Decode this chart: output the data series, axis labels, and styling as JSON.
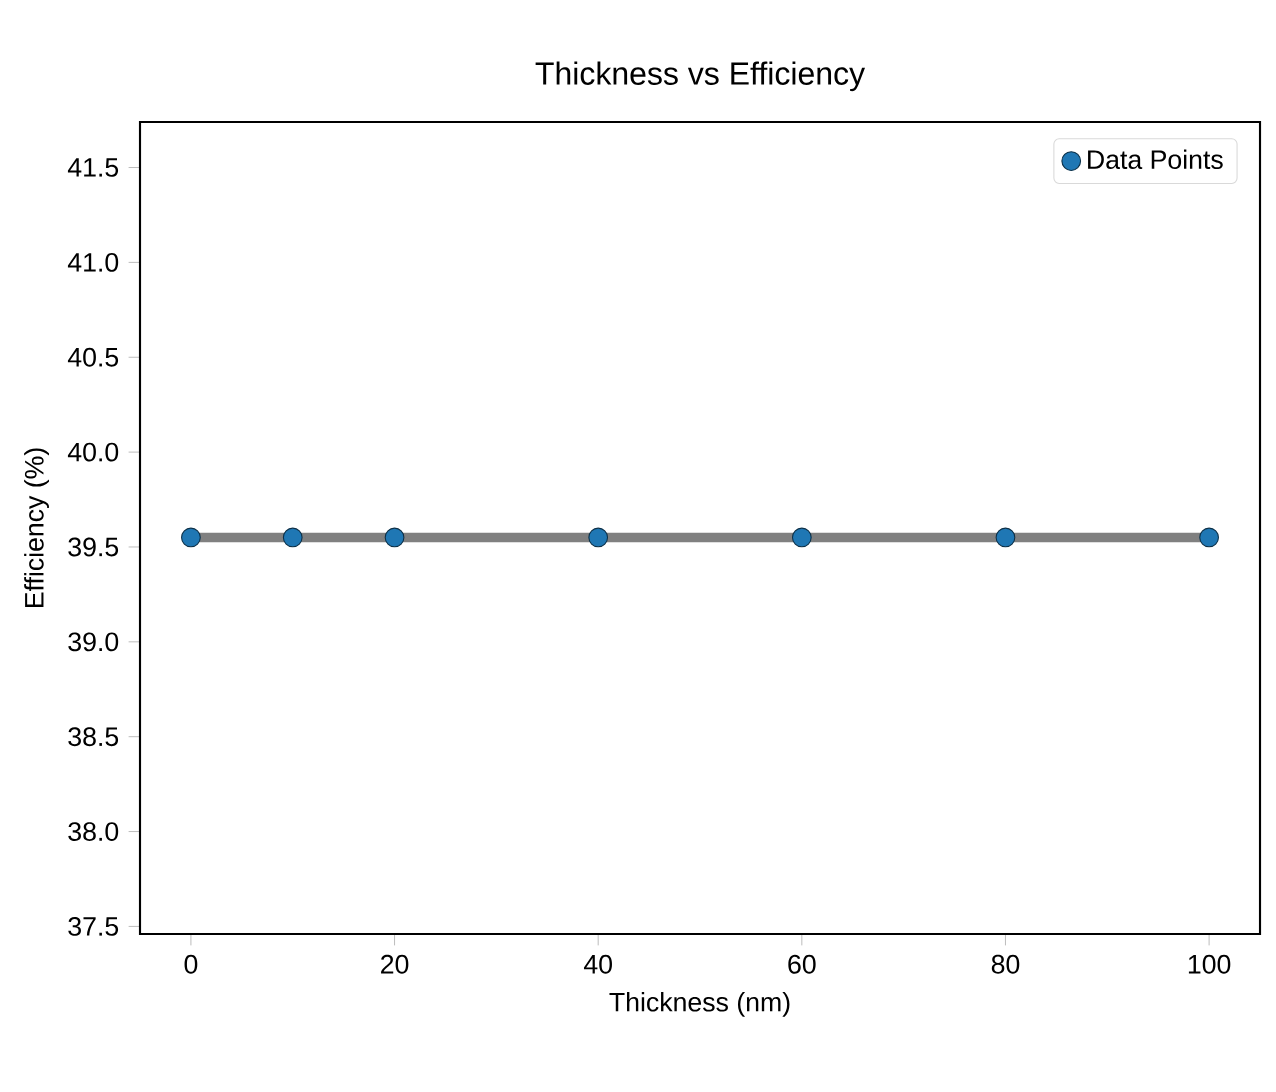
{
  "chart_data": {
    "type": "scatter",
    "title": "Thickness vs Efficiency",
    "xlabel": "Thickness (nm)",
    "ylabel": "Efficiency (%)",
    "xlim": [
      -5,
      105
    ],
    "ylim": [
      37.46,
      41.74
    ],
    "xticks": [
      0,
      20,
      40,
      60,
      80,
      100
    ],
    "yticks": [
      {
        "value": 37.5,
        "label": "37.5"
      },
      {
        "value": 38,
        "label": "38.0"
      },
      {
        "value": 38.5,
        "label": "38.5"
      },
      {
        "value": 39,
        "label": "39.0"
      },
      {
        "value": 39.5,
        "label": "39.5"
      },
      {
        "value": 40,
        "label": "40.0"
      },
      {
        "value": 40.5,
        "label": "40.5"
      },
      {
        "value": 41,
        "label": "41.0"
      },
      {
        "value": 41.5,
        "label": "41.5"
      }
    ],
    "legend": "top right",
    "grid": false,
    "marker": "circle",
    "series": [
      {
        "type": "line",
        "marker": "none",
        "color": "#808080",
        "x": [
          0,
          10,
          20,
          40,
          60,
          80,
          100
        ],
        "values": [
          39.55,
          39.55,
          39.55,
          39.55,
          39.55,
          39.55,
          39.55
        ]
      },
      {
        "name": "Data Points",
        "color": "#1f77b4",
        "x": [
          0,
          10,
          20,
          40,
          60,
          80,
          100
        ],
        "values": [
          39.55,
          39.55,
          39.55,
          39.55,
          39.55,
          39.55,
          39.55
        ]
      }
    ]
  }
}
